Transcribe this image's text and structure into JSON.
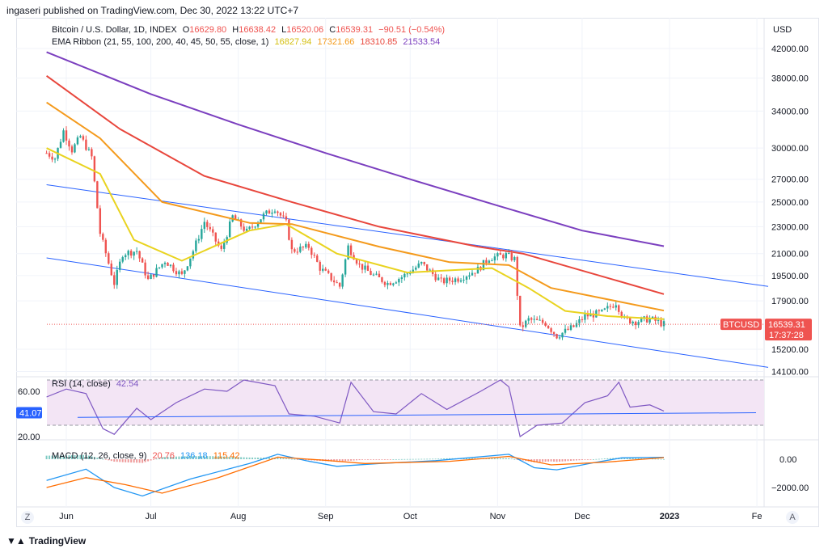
{
  "publisher_line": "ingaseri published on TradingView.com, Dec 30, 2022 13:22 UTC+7",
  "price_legend": {
    "symbol": "Bitcoin / U.S. Dollar, 1D, INDEX",
    "open_label": "O",
    "open": "16629.80",
    "high_label": "H",
    "high": "16638.42",
    "low_label": "L",
    "low": "16520.06",
    "close_label": "C",
    "close": "16539.31",
    "change": "−90.51 (−0.54%)"
  },
  "ema_legend": {
    "label": "EMA Ribbon (21, 55, 100, 200, 40, 45, 50, 55, close, 1)",
    "values": [
      "16827.94",
      "17321.66",
      "18310.85",
      "21533.54"
    ],
    "colors": [
      "#e9d31f",
      "#f49a1c",
      "#e8463c",
      "#7b3fbf"
    ]
  },
  "rsi_legend": {
    "label": "RSI (14, close)",
    "value": "42.54",
    "current_badge": "41.07"
  },
  "macd_legend": {
    "label": "MACD (12, 26, close, 9)",
    "values": [
      "20.76",
      "136.18",
      "115.42"
    ]
  },
  "price_badge": {
    "symbol": "BTCUSD",
    "price": "16539.31",
    "countdown": "17:37:28"
  },
  "currency": "USD",
  "footer": {
    "logo": "TradingView",
    "left_btn": "Z",
    "right_btn": "A"
  },
  "colors": {
    "up": "#26a69a",
    "down": "#ef5350",
    "channel": "#2962ff",
    "rsi_line": "#7e57c2",
    "rsi_fill": "#f3e5f5",
    "macd_line": "#2196f3",
    "signal_line": "#ff6d00"
  },
  "chart_data": [
    {
      "type": "candlestick",
      "title": "Bitcoin / U.S. Dollar, 1D, INDEX",
      "scale": "log",
      "y_ticks": [
        42000,
        38000,
        34000,
        30000,
        27000,
        25000,
        23000,
        21000,
        19500,
        17900,
        15200,
        14100
      ],
      "y_tick_labels": [
        "42000.00",
        "38000.00",
        "34000.00",
        "30000.00",
        "27000.00",
        "25000.00",
        "23000.00",
        "21000.00",
        "19500.00",
        "17900.00",
        "15200.00",
        "14100.00"
      ],
      "x_tick_labels": [
        "Jun",
        "Jul",
        "Aug",
        "Sep",
        "Oct",
        "Nov",
        "Dec",
        "2023",
        "Fe"
      ],
      "close_path": [
        [
          "2022-05-25",
          29500
        ],
        [
          "2022-05-28",
          29000
        ],
        [
          "2022-05-31",
          31800
        ],
        [
          "2022-06-03",
          29800
        ],
        [
          "2022-06-06",
          31200
        ],
        [
          "2022-06-10",
          29100
        ],
        [
          "2022-06-13",
          22500
        ],
        [
          "2022-06-18",
          19000
        ],
        [
          "2022-06-21",
          21000
        ],
        [
          "2022-06-26",
          21200
        ],
        [
          "2022-06-30",
          19200
        ],
        [
          "2022-07-06",
          20500
        ],
        [
          "2022-07-12",
          19500
        ],
        [
          "2022-07-16",
          21200
        ],
        [
          "2022-07-20",
          23400
        ],
        [
          "2022-07-26",
          21200
        ],
        [
          "2022-07-30",
          23800
        ],
        [
          "2022-08-04",
          22600
        ],
        [
          "2022-08-10",
          23900
        ],
        [
          "2022-08-14",
          24500
        ],
        [
          "2022-08-18",
          23300
        ],
        [
          "2022-08-20",
          21200
        ],
        [
          "2022-08-26",
          21500
        ],
        [
          "2022-08-30",
          20000
        ],
        [
          "2022-09-06",
          18800
        ],
        [
          "2022-09-09",
          21500
        ],
        [
          "2022-09-13",
          20200
        ],
        [
          "2022-09-18",
          19500
        ],
        [
          "2022-09-23",
          19000
        ],
        [
          "2022-09-28",
          19400
        ],
        [
          "2022-10-05",
          20300
        ],
        [
          "2022-10-12",
          19100
        ],
        [
          "2022-10-18",
          19300
        ],
        [
          "2022-10-25",
          19900
        ],
        [
          "2022-10-29",
          20700
        ],
        [
          "2022-11-04",
          20900
        ],
        [
          "2022-11-07",
          20600
        ],
        [
          "2022-11-09",
          16300
        ],
        [
          "2022-11-12",
          16800
        ],
        [
          "2022-11-18",
          16600
        ],
        [
          "2022-11-22",
          15900
        ],
        [
          "2022-11-28",
          16400
        ],
        [
          "2022-12-02",
          17000
        ],
        [
          "2022-12-08",
          17200
        ],
        [
          "2022-12-13",
          17800
        ],
        [
          "2022-12-16",
          16800
        ],
        [
          "2022-12-20",
          16700
        ],
        [
          "2022-12-25",
          16850
        ],
        [
          "2022-12-30",
          16539
        ]
      ],
      "series": [
        {
          "name": "EMA 21",
          "color": "#e9d31f",
          "values": [
            [
              "2022-05-25",
              30000
            ],
            [
              "2022-06-13",
              27500
            ],
            [
              "2022-06-25",
              22000
            ],
            [
              "2022-07-12",
              20500
            ],
            [
              "2022-08-05",
              22700
            ],
            [
              "2022-08-18",
              23200
            ],
            [
              "2022-09-05",
              21000
            ],
            [
              "2022-09-30",
              19700
            ],
            [
              "2022-10-30",
              20000
            ],
            [
              "2022-11-12",
              18700
            ],
            [
              "2022-11-25",
              17300
            ],
            [
              "2022-12-10",
              17000
            ],
            [
              "2022-12-30",
              16828
            ]
          ]
        },
        {
          "name": "EMA 55",
          "color": "#f49a1c",
          "values": [
            [
              "2022-05-25",
              35000
            ],
            [
              "2022-06-13",
              31000
            ],
            [
              "2022-07-05",
              25000
            ],
            [
              "2022-08-05",
              23300
            ],
            [
              "2022-08-20",
              23200
            ],
            [
              "2022-09-20",
              21500
            ],
            [
              "2022-10-15",
              20400
            ],
            [
              "2022-11-05",
              20200
            ],
            [
              "2022-11-20",
              18700
            ],
            [
              "2022-12-30",
              17322
            ]
          ]
        },
        {
          "name": "EMA 100",
          "color": "#e8463c",
          "values": [
            [
              "2022-05-25",
              38300
            ],
            [
              "2022-06-20",
              32000
            ],
            [
              "2022-07-20",
              27300
            ],
            [
              "2022-08-20",
              25000
            ],
            [
              "2022-09-20",
              23000
            ],
            [
              "2022-10-25",
              21500
            ],
            [
              "2022-11-10",
              21000
            ],
            [
              "2022-12-30",
              18311
            ]
          ]
        },
        {
          "name": "EMA 200",
          "color": "#7b3fbf",
          "values": [
            [
              "2022-05-25",
              41500
            ],
            [
              "2022-07-01",
              36000
            ],
            [
              "2022-08-01",
              32500
            ],
            [
              "2022-09-01",
              29500
            ],
            [
              "2022-10-01",
              27000
            ],
            [
              "2022-11-01",
              24700
            ],
            [
              "2022-12-01",
              22700
            ],
            [
              "2022-12-30",
              21534
            ]
          ]
        }
      ],
      "channel": {
        "upper": [
          [
            "2022-05-25",
            26500
          ],
          [
            "2023-02-05",
            18800
          ]
        ],
        "lower": [
          [
            "2022-05-25",
            20700
          ],
          [
            "2023-02-05",
            14300
          ]
        ]
      },
      "last_price": 16539.31
    },
    {
      "type": "line",
      "title": "RSI (14, close)",
      "y_tick_labels": [
        "60.00",
        "20.00"
      ],
      "band": [
        30,
        70
      ],
      "values": [
        [
          "2022-05-25",
          55
        ],
        [
          "2022-06-01",
          62
        ],
        [
          "2022-06-08",
          58
        ],
        [
          "2022-06-14",
          27
        ],
        [
          "2022-06-18",
          22
        ],
        [
          "2022-06-26",
          45
        ],
        [
          "2022-07-01",
          35
        ],
        [
          "2022-07-10",
          50
        ],
        [
          "2022-07-20",
          62
        ],
        [
          "2022-07-28",
          60
        ],
        [
          "2022-08-03",
          70
        ],
        [
          "2022-08-14",
          65
        ],
        [
          "2022-08-19",
          40
        ],
        [
          "2022-08-28",
          38
        ],
        [
          "2022-09-06",
          32
        ],
        [
          "2022-09-10",
          68
        ],
        [
          "2022-09-18",
          42
        ],
        [
          "2022-09-26",
          40
        ],
        [
          "2022-10-05",
          58
        ],
        [
          "2022-10-14",
          44
        ],
        [
          "2022-10-26",
          60
        ],
        [
          "2022-11-02",
          70
        ],
        [
          "2022-11-05",
          64
        ],
        [
          "2022-11-09",
          20
        ],
        [
          "2022-11-15",
          30
        ],
        [
          "2022-11-24",
          32
        ],
        [
          "2022-12-02",
          50
        ],
        [
          "2022-12-10",
          56
        ],
        [
          "2022-12-14",
          68
        ],
        [
          "2022-12-18",
          46
        ],
        [
          "2022-12-25",
          48
        ],
        [
          "2022-12-30",
          42.54
        ]
      ],
      "trend": [
        [
          "2022-06-05",
          37
        ],
        [
          "2022-12-30",
          41.07
        ]
      ]
    },
    {
      "type": "bar+line",
      "title": "MACD (12, 26, close, 9)",
      "y_tick_labels": [
        "0.00",
        "−2000.00"
      ],
      "macd": [
        [
          "2022-05-25",
          -1500
        ],
        [
          "2022-06-08",
          -700
        ],
        [
          "2022-06-18",
          -2000
        ],
        [
          "2022-06-28",
          -2600
        ],
        [
          "2022-07-15",
          -1400
        ],
        [
          "2022-08-05",
          -300
        ],
        [
          "2022-08-15",
          350
        ],
        [
          "2022-08-25",
          -100
        ],
        [
          "2022-09-05",
          -500
        ],
        [
          "2022-09-20",
          -300
        ],
        [
          "2022-10-10",
          -100
        ],
        [
          "2022-11-05",
          350
        ],
        [
          "2022-11-14",
          -600
        ],
        [
          "2022-11-22",
          -750
        ],
        [
          "2022-12-05",
          -250
        ],
        [
          "2022-12-15",
          100
        ],
        [
          "2022-12-30",
          136
        ]
      ],
      "signal": [
        [
          "2022-05-25",
          -2000
        ],
        [
          "2022-06-08",
          -1300
        ],
        [
          "2022-06-22",
          -1800
        ],
        [
          "2022-07-05",
          -2400
        ],
        [
          "2022-07-25",
          -1300
        ],
        [
          "2022-08-15",
          150
        ],
        [
          "2022-08-30",
          -50
        ],
        [
          "2022-09-15",
          -300
        ],
        [
          "2022-10-15",
          -150
        ],
        [
          "2022-11-05",
          200
        ],
        [
          "2022-11-20",
          -400
        ],
        [
          "2022-12-10",
          -200
        ],
        [
          "2022-12-30",
          115
        ]
      ]
    }
  ]
}
